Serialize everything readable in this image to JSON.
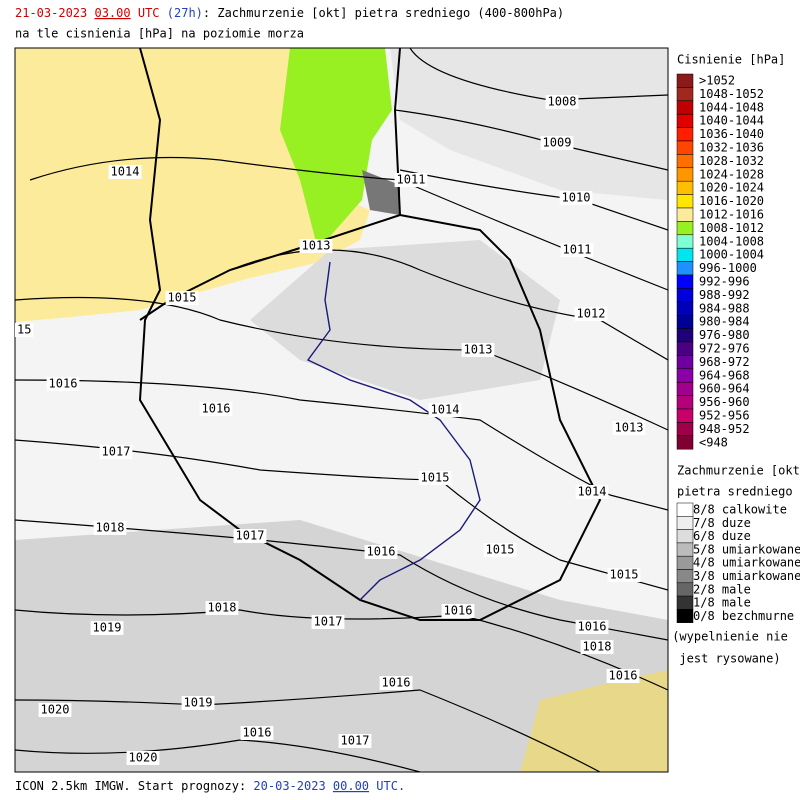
{
  "header": {
    "date": "21-03-2023",
    "hour": "03.00",
    "utc": "UTC",
    "lead": "(27h)",
    "title": ": Zachmurzenie [okt] pietra sredniego (400-800hPa)",
    "subtitle": "na tle cisnienia [hPa] na poziomie morza"
  },
  "footer": {
    "text": "ICON 2.5km IMGW. Start prognozy: ",
    "date": "20-03-2023",
    "hour": "00.00",
    "utc": "UTC."
  },
  "legend_pressure": {
    "title": "Cisnienie [hPa]",
    "items": [
      {
        "label": ">1052",
        "color": "#8b1a1a"
      },
      {
        "label": "1048-1052",
        "color": "#a0281e"
      },
      {
        "label": "1044-1048",
        "color": "#c00000"
      },
      {
        "label": "1040-1044",
        "color": "#e00000"
      },
      {
        "label": "1036-1040",
        "color": "#ff1e00"
      },
      {
        "label": "1032-1036",
        "color": "#ff4600"
      },
      {
        "label": "1028-1032",
        "color": "#ff6e00"
      },
      {
        "label": "1024-1028",
        "color": "#ff9600"
      },
      {
        "label": "1020-1024",
        "color": "#ffbe00"
      },
      {
        "label": "1016-1020",
        "color": "#ffe600"
      },
      {
        "label": "1012-1016",
        "color": "#fbeb9b"
      },
      {
        "label": "1008-1012",
        "color": "#98f022"
      },
      {
        "label": "1004-1008",
        "color": "#7fffd4"
      },
      {
        "label": "1000-1004",
        "color": "#00e5ee"
      },
      {
        "label": "996-1000",
        "color": "#1e90ff"
      },
      {
        "label": "992-996",
        "color": "#0000ff"
      },
      {
        "label": "988-992",
        "color": "#0000dc"
      },
      {
        "label": "984-988",
        "color": "#0000b9"
      },
      {
        "label": "980-984",
        "color": "#000096"
      },
      {
        "label": "976-980",
        "color": "#1e0078"
      },
      {
        "label": "972-976",
        "color": "#4b0082"
      },
      {
        "label": "968-972",
        "color": "#6e00a0"
      },
      {
        "label": "964-968",
        "color": "#8c00a8"
      },
      {
        "label": "960-964",
        "color": "#a0008c"
      },
      {
        "label": "956-960",
        "color": "#b4007a"
      },
      {
        "label": "952-956",
        "color": "#c8006a"
      },
      {
        "label": "948-952",
        "color": "#a0004a"
      },
      {
        "label": "<948",
        "color": "#800032"
      }
    ]
  },
  "legend_cloud": {
    "title": "Zachmurzenie [okt]",
    "subtitle": "pietra sredniego",
    "items": [
      {
        "label": "8/8 calkowite",
        "color": "#ffffff"
      },
      {
        "label": "7/8 duze",
        "color": "#eeeeee"
      },
      {
        "label": "6/8 duze",
        "color": "#dddddd"
      },
      {
        "label": "5/8 umiarkowane",
        "color": "#bbbbbb"
      },
      {
        "label": "4/8 umiarkowane",
        "color": "#9a9a9a"
      },
      {
        "label": "3/8 umiarkowane",
        "color": "#888888"
      },
      {
        "label": "2/8 male",
        "color": "#666666"
      },
      {
        "label": "1/8 male",
        "color": "#333333"
      },
      {
        "label": "0/8 bezchmurne",
        "color": "#000000"
      }
    ],
    "note": [
      "(wypelnienie nie",
      "jest rysowane)"
    ]
  },
  "isobar_labels": [
    "1008",
    "1009",
    "1010",
    "1011",
    "1011",
    "1012",
    "1013",
    "1013",
    "1013",
    "1014",
    "1014",
    "1014",
    "1015",
    "15",
    "1015",
    "1015",
    "1015",
    "1016",
    "1016",
    "1016",
    "1016",
    "1016",
    "1016",
    "1016",
    "1017",
    "1017",
    "1017",
    "1017",
    "1018",
    "1018",
    "1018",
    "1019",
    "1019",
    "1020",
    "1020",
    "1016"
  ]
}
